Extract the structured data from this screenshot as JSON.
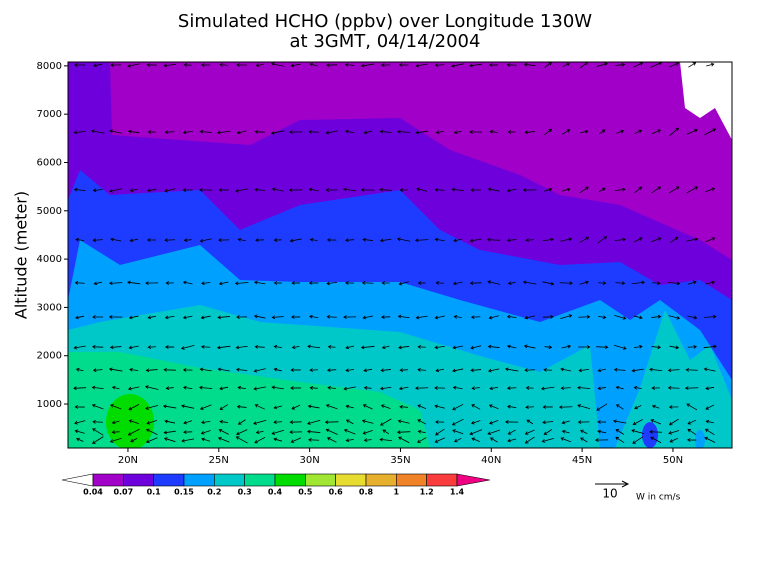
{
  "chart_data": {
    "type": "contour",
    "title": "Simulated HCHO (ppbv) over Longitude 130W",
    "subtitle": "at 3GMT, 04/14/2004",
    "y_label": "Altitude (meter)",
    "xlim": [
      16.7,
      53.25
    ],
    "ylim": [
      90,
      8080
    ],
    "xticks": [
      {
        "value": 20,
        "label": "20N"
      },
      {
        "value": 25,
        "label": "25N"
      },
      {
        "value": 30,
        "label": "30N"
      },
      {
        "value": 35,
        "label": "35N"
      },
      {
        "value": 40,
        "label": "40N"
      },
      {
        "value": 45,
        "label": "45N"
      },
      {
        "value": 50,
        "label": "50N"
      }
    ],
    "yticks": [
      1000,
      2000,
      3000,
      4000,
      5000,
      6000,
      7000,
      8000
    ],
    "colorbar": {
      "levels": [
        0.04,
        0.07,
        0.1,
        0.15,
        0.2,
        0.3,
        0.4,
        0.5,
        0.6,
        0.8,
        1,
        1.2,
        1.4
      ],
      "colors": [
        "#ffffff",
        "#a000c8",
        "#6e00dc",
        "#1e3cff",
        "#00a0ff",
        "#00c8c8",
        "#00dc8c",
        "#00dc00",
        "#a0e632",
        "#e6dc32",
        "#e6af2d",
        "#f08228",
        "#fa3c3c",
        "#f00082"
      ]
    },
    "vector_legend": {
      "value": 10,
      "unit": "W in cm/s"
    }
  }
}
